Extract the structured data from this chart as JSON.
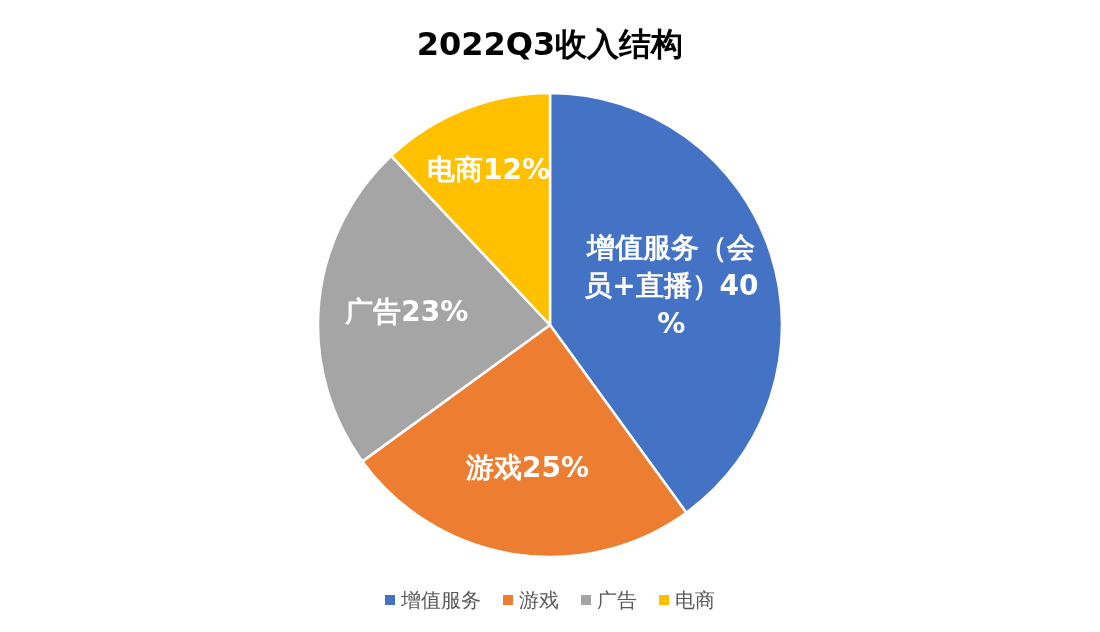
{
  "chart_data": {
    "type": "pie",
    "title": "2022Q3收入结构",
    "categories": [
      "增值服务",
      "游戏",
      "广告",
      "电商"
    ],
    "values": [
      40,
      25,
      23,
      12
    ],
    "colors": [
      "#4472c4",
      "#ed7d31",
      "#a5a5a5",
      "#ffc000"
    ],
    "value_labels": [
      "增值服务（会员+直播）40%",
      "游戏25%",
      "广告23%",
      "电商12%"
    ],
    "legend": "bottom"
  }
}
